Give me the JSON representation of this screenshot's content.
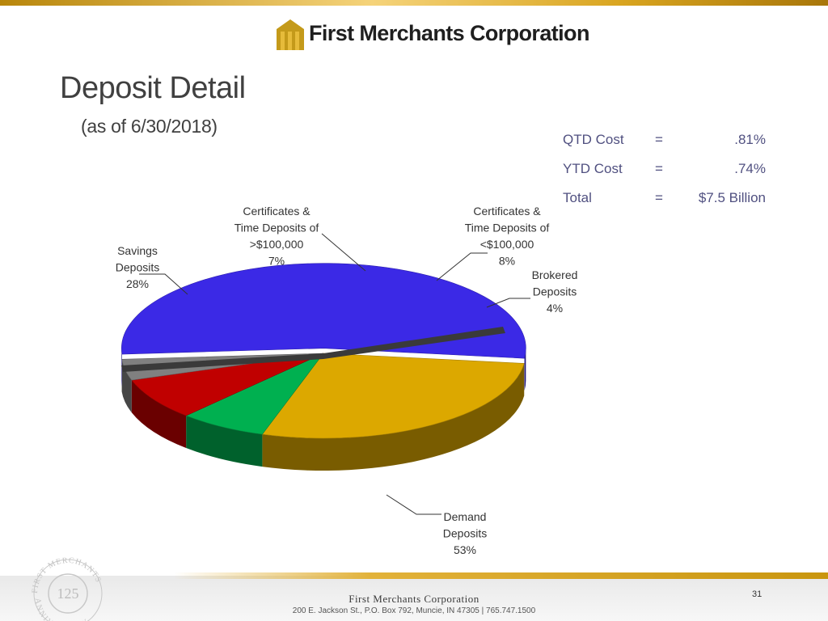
{
  "header": {
    "company_name": "First Merchants Corporation",
    "title": "Deposit Detail",
    "subtitle": "(as of 6/30/2018)"
  },
  "stats": [
    {
      "label": "QTD Cost",
      "eq": "=",
      "value": ".81%"
    },
    {
      "label": "YTD Cost",
      "eq": "=",
      "value": ".74%"
    },
    {
      "label": "Total",
      "eq": "=",
      "value": "$7.5 Billion"
    }
  ],
  "chart_data": {
    "type": "pie",
    "title": "",
    "slices": [
      {
        "label": [
          "Demand",
          "Deposits",
          "53%"
        ],
        "value": 53,
        "color": "#3b29e6"
      },
      {
        "label": [
          "Savings",
          "Deposits",
          "28%"
        ],
        "value": 28,
        "color": "#dca800"
      },
      {
        "label": [
          "Certificates &",
          "Time Deposits of",
          ">$100,000",
          "7%"
        ],
        "value": 7,
        "color": "#00b050"
      },
      {
        "label": [
          "Certificates &",
          "Time Deposits of",
          "<$100,000",
          "8%"
        ],
        "value": 8,
        "color": "#c00000"
      },
      {
        "label": [
          "Brokered",
          "Deposits",
          "4%"
        ],
        "value": 4,
        "color": "#808080"
      }
    ],
    "legend": "none",
    "style": "3d-exploded-pie"
  },
  "footer": {
    "company": "First Merchants Corporation",
    "address": "200 E. Jackson St., P.O. Box 792, Muncie, IN 47305  |  765.747.1500",
    "page_number": "31",
    "seal_text": "FIRST MERCHANTS 125 ANNIVERSARY",
    "seal_number": "125"
  },
  "colors": {
    "accent_gold": "#d9a520",
    "title_gray": "#404040"
  }
}
